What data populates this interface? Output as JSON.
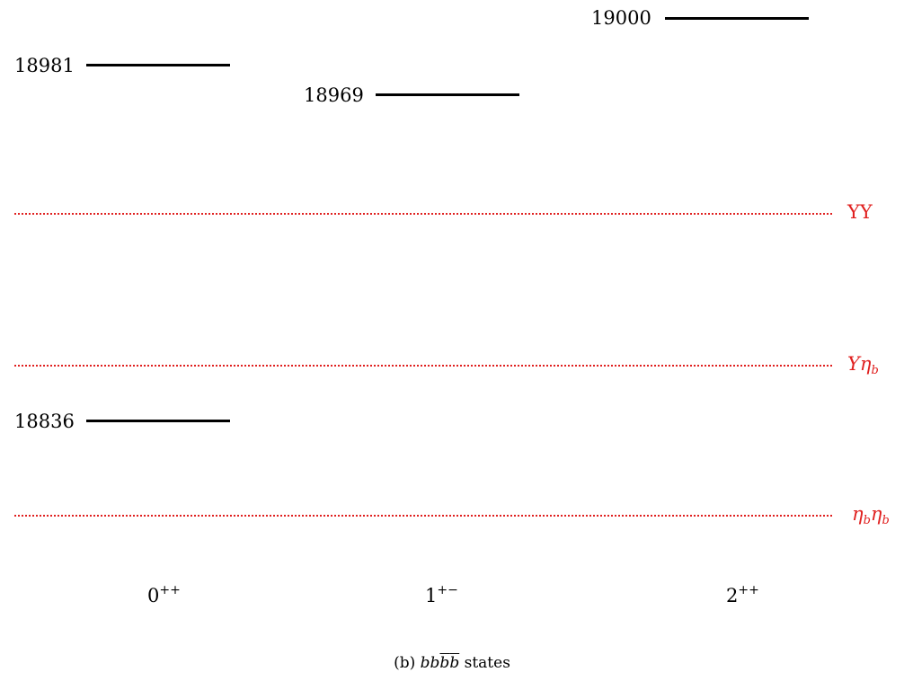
{
  "levels": [
    {
      "id": "0pp-18981",
      "value": "18981",
      "jpc": "0++"
    },
    {
      "id": "0pp-18836",
      "value": "18836",
      "jpc": "0++"
    },
    {
      "id": "1pm-18969",
      "value": "18969",
      "jpc": "1+−"
    },
    {
      "id": "2pp-19000",
      "value": "19000",
      "jpc": "2++"
    }
  ],
  "thresholds": [
    {
      "id": "upsilon-upsilon",
      "label": "ΥΥ"
    },
    {
      "id": "upsilon-eta-b",
      "main": "Υη",
      "sub": "b"
    },
    {
      "id": "eta-b-eta-b",
      "eta1": "η",
      "sub1": "b",
      "eta2": "η",
      "sub2": "b"
    }
  ],
  "jpc_labels": [
    {
      "base": "0",
      "sup": "++"
    },
    {
      "base": "1",
      "sup": "+−"
    },
    {
      "base": "2",
      "sup": "++"
    }
  ],
  "caption": {
    "prefix": "(b)",
    "q1": "b",
    "q2": "b",
    "q3": "b",
    "q4": "b",
    "suffix": "states"
  },
  "colors": {
    "level": "#000000",
    "threshold": "#e0201f"
  }
}
